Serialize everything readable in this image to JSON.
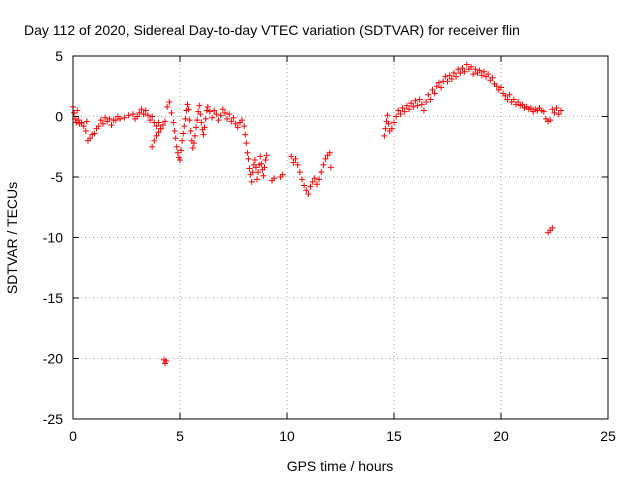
{
  "chart_data": {
    "type": "scatter",
    "title": "Day 112 of 2020, Sidereal Day-to-day VTEC variation (SDTVAR) for receiver flin",
    "xlabel": "GPS time / hours",
    "ylabel": "SDTVAR / TECUs",
    "xlim": [
      0,
      25
    ],
    "ylim": [
      -25,
      5
    ],
    "xticks": [
      0,
      5,
      10,
      15,
      20,
      25
    ],
    "yticks": [
      5,
      0,
      -5,
      -10,
      -15,
      -20,
      -25
    ],
    "grid": true,
    "marker": "plus",
    "color": "#ff0000",
    "series": [
      {
        "name": "SDTVAR",
        "points": [
          [
            0.0,
            0.8
          ],
          [
            0.05,
            0.3
          ],
          [
            0.1,
            -0.2
          ],
          [
            0.15,
            -0.5
          ],
          [
            0.2,
            0.5
          ],
          [
            0.25,
            -0.3
          ],
          [
            0.3,
            -0.6
          ],
          [
            0.4,
            -0.5
          ],
          [
            0.5,
            -0.8
          ],
          [
            0.6,
            -1.2
          ],
          [
            0.65,
            -0.4
          ],
          [
            0.7,
            -2.0
          ],
          [
            0.8,
            -1.8
          ],
          [
            0.9,
            -1.5
          ],
          [
            1.0,
            -1.4
          ],
          [
            1.1,
            -1.0
          ],
          [
            1.2,
            -0.8
          ],
          [
            1.3,
            -0.3
          ],
          [
            1.4,
            -0.6
          ],
          [
            1.5,
            -0.1
          ],
          [
            1.6,
            -0.4
          ],
          [
            1.7,
            -0.2
          ],
          [
            1.8,
            -0.7
          ],
          [
            1.9,
            -0.3
          ],
          [
            2.0,
            -0.3
          ],
          [
            2.1,
            0.0
          ],
          [
            2.2,
            -0.2
          ],
          [
            2.4,
            -0.1
          ],
          [
            2.6,
            0.1
          ],
          [
            2.8,
            0.2
          ],
          [
            2.9,
            -0.2
          ],
          [
            3.0,
            0.0
          ],
          [
            3.1,
            0.3
          ],
          [
            3.2,
            0.6
          ],
          [
            3.3,
            0.2
          ],
          [
            3.4,
            0.5
          ],
          [
            3.5,
            0.1
          ],
          [
            3.6,
            -0.3
          ],
          [
            3.7,
            0.0
          ],
          [
            3.8,
            -0.5
          ],
          [
            3.9,
            -0.8
          ],
          [
            4.0,
            -0.5
          ],
          [
            4.1,
            -1.0
          ],
          [
            4.2,
            -0.7
          ],
          [
            4.3,
            -0.4
          ],
          [
            3.7,
            -2.5
          ],
          [
            3.8,
            -2.0
          ],
          [
            3.9,
            -1.6
          ],
          [
            4.0,
            -1.3
          ],
          [
            4.1,
            -1.0
          ],
          [
            4.25,
            -20.1
          ],
          [
            4.3,
            -20.4
          ],
          [
            4.35,
            -20.2
          ],
          [
            4.4,
            0.8
          ],
          [
            4.5,
            1.2
          ],
          [
            4.6,
            0.3
          ],
          [
            4.7,
            -0.5
          ],
          [
            4.75,
            -1.2
          ],
          [
            4.8,
            -1.8
          ],
          [
            4.85,
            -2.5
          ],
          [
            4.9,
            -3.0
          ],
          [
            4.95,
            -3.4
          ],
          [
            5.0,
            -3.6
          ],
          [
            5.05,
            -2.8
          ],
          [
            5.1,
            -2.0
          ],
          [
            5.15,
            -1.4
          ],
          [
            5.2,
            -0.8
          ],
          [
            5.25,
            -0.2
          ],
          [
            5.3,
            0.5
          ],
          [
            5.35,
            1.0
          ],
          [
            5.4,
            0.6
          ],
          [
            5.45,
            -0.3
          ],
          [
            5.5,
            -1.2
          ],
          [
            5.55,
            -2.0
          ],
          [
            5.6,
            -2.6
          ],
          [
            5.65,
            -2.2
          ],
          [
            5.7,
            -1.6
          ],
          [
            5.75,
            -0.9
          ],
          [
            5.8,
            -0.3
          ],
          [
            5.85,
            0.4
          ],
          [
            5.9,
            0.9
          ],
          [
            5.95,
            0.2
          ],
          [
            6.0,
            -0.5
          ],
          [
            6.05,
            -1.1
          ],
          [
            6.1,
            -1.5
          ],
          [
            6.15,
            -0.9
          ],
          [
            6.2,
            -0.2
          ],
          [
            6.25,
            0.5
          ],
          [
            6.3,
            0.8
          ],
          [
            6.4,
            0.4
          ],
          [
            6.5,
            -0.1
          ],
          [
            6.6,
            0.5
          ],
          [
            6.7,
            0.2
          ],
          [
            6.8,
            -0.3
          ],
          [
            6.9,
            0.1
          ],
          [
            7.0,
            0.6
          ],
          [
            7.1,
            0.3
          ],
          [
            7.2,
            -0.2
          ],
          [
            7.3,
            0.2
          ],
          [
            7.4,
            -0.4
          ],
          [
            7.5,
            -0.1
          ],
          [
            7.6,
            -0.6
          ],
          [
            7.7,
            -0.9
          ],
          [
            7.8,
            -0.5
          ],
          [
            7.9,
            -0.3
          ],
          [
            8.0,
            -0.8
          ],
          [
            8.05,
            -1.5
          ],
          [
            8.1,
            -2.2
          ],
          [
            8.15,
            -3.0
          ],
          [
            8.2,
            -3.5
          ],
          [
            8.25,
            -4.3
          ],
          [
            8.3,
            -4.8
          ],
          [
            8.35,
            -5.4
          ],
          [
            8.4,
            -4.6
          ],
          [
            8.45,
            -4.0
          ],
          [
            8.5,
            -3.6
          ],
          [
            8.55,
            -4.2
          ],
          [
            8.6,
            -5.2
          ],
          [
            8.65,
            -4.6
          ],
          [
            8.7,
            -4.0
          ],
          [
            8.75,
            -3.3
          ],
          [
            8.8,
            -3.9
          ],
          [
            8.85,
            -4.4
          ],
          [
            8.9,
            -4.9
          ],
          [
            8.95,
            -4.2
          ],
          [
            9.0,
            -3.6
          ],
          [
            9.05,
            -3.2
          ],
          [
            9.3,
            -5.3
          ],
          [
            9.4,
            -5.1
          ],
          [
            9.7,
            -5.0
          ],
          [
            9.8,
            -4.8
          ],
          [
            10.2,
            -3.3
          ],
          [
            10.3,
            -3.8
          ],
          [
            10.4,
            -3.5
          ],
          [
            10.5,
            -4.0
          ],
          [
            10.6,
            -4.6
          ],
          [
            10.7,
            -5.2
          ],
          [
            10.8,
            -5.7
          ],
          [
            10.9,
            -6.1
          ],
          [
            11.0,
            -6.4
          ],
          [
            11.1,
            -5.8
          ],
          [
            11.2,
            -5.4
          ],
          [
            11.3,
            -5.1
          ],
          [
            11.4,
            -5.6
          ],
          [
            11.5,
            -5.2
          ],
          [
            11.6,
            -4.6
          ],
          [
            11.7,
            -4.0
          ],
          [
            11.8,
            -3.5
          ],
          [
            11.9,
            -3.2
          ],
          [
            12.0,
            -3.0
          ],
          [
            12.05,
            -4.2
          ],
          [
            14.55,
            -1.6
          ],
          [
            14.6,
            -1.0
          ],
          [
            14.65,
            -0.4
          ],
          [
            14.7,
            0.1
          ],
          [
            14.75,
            -0.6
          ],
          [
            14.8,
            -1.2
          ],
          [
            14.9,
            -1.0
          ],
          [
            15.0,
            -0.5
          ],
          [
            15.1,
            0.0
          ],
          [
            15.2,
            0.5
          ],
          [
            15.3,
            0.2
          ],
          [
            15.4,
            0.7
          ],
          [
            15.5,
            0.4
          ],
          [
            15.6,
            0.9
          ],
          [
            15.7,
            0.6
          ],
          [
            15.8,
            1.1
          ],
          [
            15.9,
            0.8
          ],
          [
            16.0,
            1.3
          ],
          [
            16.1,
            0.9
          ],
          [
            16.2,
            1.4
          ],
          [
            16.3,
            1.0
          ],
          [
            16.4,
            0.5
          ],
          [
            16.5,
            1.2
          ],
          [
            16.6,
            1.8
          ],
          [
            16.7,
            1.4
          ],
          [
            16.8,
            2.2
          ],
          [
            16.9,
            1.9
          ],
          [
            17.0,
            2.5
          ],
          [
            17.1,
            2.8
          ],
          [
            17.2,
            2.4
          ],
          [
            17.3,
            2.9
          ],
          [
            17.4,
            3.3
          ],
          [
            17.5,
            2.9
          ],
          [
            17.6,
            3.4
          ],
          [
            17.7,
            3.1
          ],
          [
            17.8,
            3.6
          ],
          [
            17.9,
            3.3
          ],
          [
            18.0,
            3.9
          ],
          [
            18.1,
            3.6
          ],
          [
            18.2,
            4.0
          ],
          [
            18.3,
            3.7
          ],
          [
            18.4,
            4.3
          ],
          [
            18.5,
            3.9
          ],
          [
            18.6,
            4.1
          ],
          [
            18.7,
            3.5
          ],
          [
            18.8,
            3.9
          ],
          [
            18.9,
            3.6
          ],
          [
            19.0,
            3.8
          ],
          [
            19.1,
            3.4
          ],
          [
            19.2,
            3.7
          ],
          [
            19.3,
            3.3
          ],
          [
            19.4,
            3.5
          ],
          [
            19.5,
            3.0
          ],
          [
            19.6,
            3.2
          ],
          [
            19.7,
            2.7
          ],
          [
            19.8,
            2.5
          ],
          [
            19.9,
            2.2
          ],
          [
            20.0,
            2.4
          ],
          [
            20.1,
            1.9
          ],
          [
            20.2,
            1.7
          ],
          [
            20.3,
            1.4
          ],
          [
            20.4,
            1.8
          ],
          [
            20.5,
            1.2
          ],
          [
            20.6,
            1.4
          ],
          [
            20.7,
            1.0
          ],
          [
            20.8,
            1.2
          ],
          [
            20.9,
            0.9
          ],
          [
            21.0,
            1.0
          ],
          [
            21.1,
            0.7
          ],
          [
            21.2,
            0.8
          ],
          [
            21.3,
            0.6
          ],
          [
            21.4,
            0.7
          ],
          [
            21.5,
            0.4
          ],
          [
            21.6,
            0.6
          ],
          [
            21.7,
            0.5
          ],
          [
            21.8,
            0.7
          ],
          [
            21.9,
            0.5
          ],
          [
            22.0,
            0.4
          ],
          [
            22.1,
            -0.2
          ],
          [
            22.2,
            -0.4
          ],
          [
            22.3,
            -0.3
          ],
          [
            22.4,
            0.6
          ],
          [
            22.5,
            0.3
          ],
          [
            22.6,
            0.7
          ],
          [
            22.7,
            0.2
          ],
          [
            22.8,
            0.5
          ],
          [
            22.2,
            -9.6
          ],
          [
            22.3,
            -9.4
          ],
          [
            22.4,
            -9.2
          ]
        ]
      }
    ]
  }
}
